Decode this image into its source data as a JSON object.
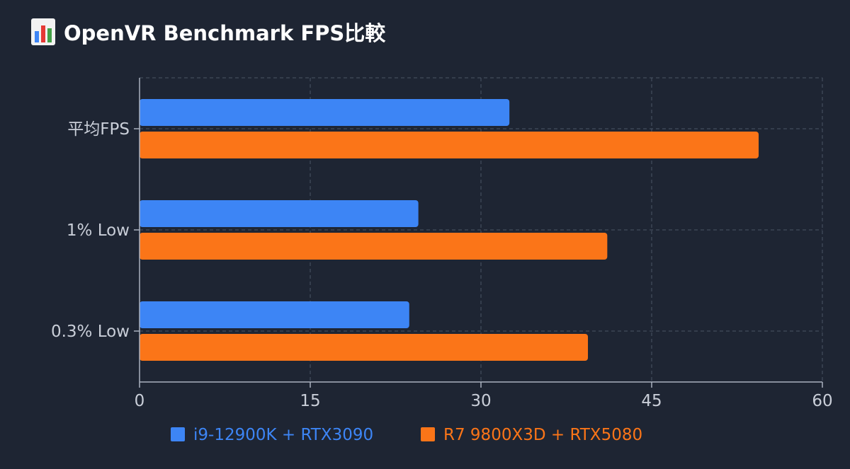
{
  "title_icon": "bar-chart-icon",
  "chart_data": {
    "type": "bar",
    "orientation": "horizontal",
    "title": "OpenVR Benchmark FPS比較",
    "categories": [
      "平均FPS",
      "1% Low",
      "0.3% Low"
    ],
    "series": [
      {
        "name": "i9-12900K + RTX3090",
        "color": "#3d85f5",
        "values": [
          32.5,
          24.5,
          23.7
        ]
      },
      {
        "name": "R7 9800X3D + RTX5080",
        "color": "#fb7518",
        "values": [
          54.4,
          41.1,
          39.4
        ]
      }
    ],
    "xlim": [
      0,
      60
    ],
    "xticks": [
      0,
      15,
      30,
      45,
      60
    ],
    "grid": true,
    "legend": "bottom-center",
    "xlabel": "",
    "ylabel": ""
  }
}
